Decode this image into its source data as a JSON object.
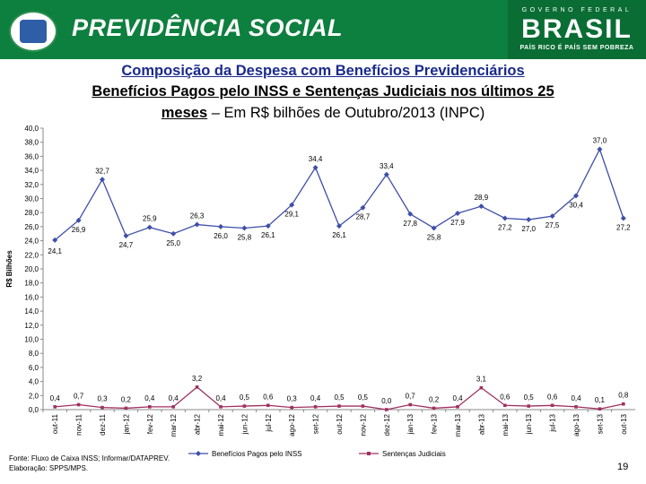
{
  "header": {
    "title": "PREVIDÊNCIA SOCIAL",
    "gov_top": "GOVERNO FEDERAL",
    "gov_brasil": "BRASIL",
    "gov_slogan": "PAÍS RICO É PAÍS SEM POBREZA"
  },
  "titles": {
    "line1": "Composição da Despesa com Benefícios Previdenciários",
    "line2": "Benefícios Pagos pelo INSS e Sentenças Judiciais nos últimos 25",
    "line3_bold": "meses",
    "line3_rest": " – Em R$ bilhões de Outubro/2013 (INPC)"
  },
  "footer": {
    "source": "Fonte: Fluxo de Caixa INSS; Informar/DATAPREV.",
    "elaboration": "Elaboração: SPPS/MPS.",
    "page_number": "19"
  },
  "colors": {
    "banner": "#0d7f3e",
    "series_inss": "#3f4fa8",
    "series_judiciais": "#a03060"
  },
  "chart_data": {
    "type": "line",
    "ylabel": "R$ Bilhões",
    "ylim": [
      0,
      40
    ],
    "ytick_step": 2,
    "ytick_labels": [
      "0,0",
      "2,0",
      "4,0",
      "6,0",
      "8,0",
      "10,0",
      "12,0",
      "14,0",
      "16,0",
      "18,0",
      "20,0",
      "22,0",
      "24,0",
      "26,0",
      "28,0",
      "30,0",
      "32,0",
      "34,0",
      "36,0",
      "38,0",
      "40,0"
    ],
    "grid": false,
    "legend_position": "bottom",
    "categories": [
      "out-11",
      "nov-11",
      "dez-11",
      "jan-12",
      "fev-12",
      "mar-12",
      "abr-12",
      "mai-12",
      "jun-12",
      "jul-12",
      "ago-12",
      "set-12",
      "out-12",
      "nov-12",
      "dez-12",
      "jan-13",
      "fev-13",
      "mar-13",
      "abr-13",
      "mai-13",
      "jun-13",
      "jul-13",
      "ago-13",
      "set-13",
      "out-13"
    ],
    "series": [
      {
        "name": "Benefícios Pagos pelo INSS",
        "values": [
          24.1,
          26.9,
          32.7,
          24.7,
          25.9,
          25.0,
          26.3,
          26.0,
          25.8,
          26.1,
          29.1,
          34.4,
          26.1,
          28.7,
          33.4,
          27.8,
          25.8,
          27.9,
          28.9,
          27.2,
          27.0,
          27.5,
          30.4,
          37.0,
          27.2
        ],
        "labels": [
          "24,1",
          "26,9",
          "32,7",
          "24,7",
          "25,9",
          "25,0",
          "26,3",
          "26,0",
          "25,8",
          "26,1",
          "29,1",
          "34,4",
          "26,1",
          "28,7",
          "33,4",
          "27,8",
          "25,8",
          "27,9",
          "28,9",
          "27,2",
          "27,0",
          "27,5",
          "30,4",
          "37,0",
          "27,2"
        ]
      },
      {
        "name": "Sentenças Judiciais",
        "values": [
          0.4,
          0.7,
          0.3,
          0.2,
          0.4,
          0.4,
          3.2,
          0.4,
          0.5,
          0.6,
          0.3,
          0.4,
          0.5,
          0.5,
          0.0,
          0.7,
          0.2,
          0.4,
          3.1,
          0.6,
          0.5,
          0.6,
          0.4,
          0.1,
          0.8
        ],
        "labels": [
          "0,4",
          "0,7",
          "0,3",
          "0,2",
          "0,4",
          "0,4",
          "3,2",
          "0,4",
          "0,5",
          "0,6",
          "0,3",
          "0,4",
          "0,5",
          "0,5",
          "0,0",
          "0,7",
          "0,2",
          "0,4",
          "3,1",
          "0,6",
          "0,5",
          "0,6",
          "0,4",
          "0,1",
          "0,8"
        ]
      }
    ]
  }
}
